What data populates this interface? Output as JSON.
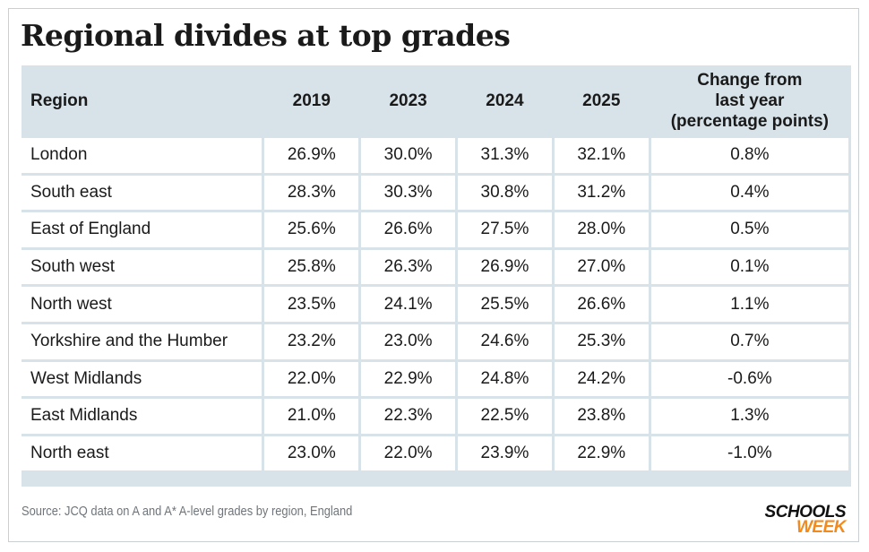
{
  "title": "Regional divides at top grades",
  "chart_data": {
    "type": "table",
    "title": "Regional divides at top grades",
    "columns": [
      "Region",
      "2019",
      "2023",
      "2024",
      "2025",
      "Change from last year (percentage points)"
    ],
    "column_header_lines": {
      "change": [
        "Change from",
        "last year",
        "(percentage points)"
      ]
    },
    "rows": [
      {
        "region": "London",
        "y2019": "26.9%",
        "y2023": "30.0%",
        "y2024": "31.3%",
        "y2025": "32.1%",
        "change": "0.8%"
      },
      {
        "region": "South east",
        "y2019": "28.3%",
        "y2023": "30.3%",
        "y2024": "30.8%",
        "y2025": "31.2%",
        "change": "0.4%"
      },
      {
        "region": "East of England",
        "y2019": "25.6%",
        "y2023": "26.6%",
        "y2024": "27.5%",
        "y2025": "28.0%",
        "change": "0.5%"
      },
      {
        "region": "South west",
        "y2019": "25.8%",
        "y2023": "26.3%",
        "y2024": "26.9%",
        "y2025": "27.0%",
        "change": "0.1%"
      },
      {
        "region": "North west",
        "y2019": "23.5%",
        "y2023": "24.1%",
        "y2024": "25.5%",
        "y2025": "26.6%",
        "change": "1.1%"
      },
      {
        "region": "Yorkshire and the Humber",
        "y2019": "23.2%",
        "y2023": "23.0%",
        "y2024": "24.6%",
        "y2025": "25.3%",
        "change": "0.7%"
      },
      {
        "region": "West Midlands",
        "y2019": "22.0%",
        "y2023": "22.9%",
        "y2024": "24.8%",
        "y2025": "24.2%",
        "change": "-0.6%"
      },
      {
        "region": "East Midlands",
        "y2019": "21.0%",
        "y2023": "22.3%",
        "y2024": "22.5%",
        "y2025": "23.8%",
        "change": "1.3%"
      },
      {
        "region": "North east",
        "y2019": "23.0%",
        "y2023": "22.0%",
        "y2024": "23.9%",
        "y2025": "22.9%",
        "change": "-1.0%"
      }
    ]
  },
  "source": "Source: JCQ data on A and A* A-level grades by region, England",
  "logo": {
    "line1": "SCHOOLS",
    "line2": "WEEK"
  },
  "colors": {
    "header_bg": "#d8e3e9",
    "cell_bg": "#ffffff",
    "logo_accent": "#f28a1c"
  }
}
